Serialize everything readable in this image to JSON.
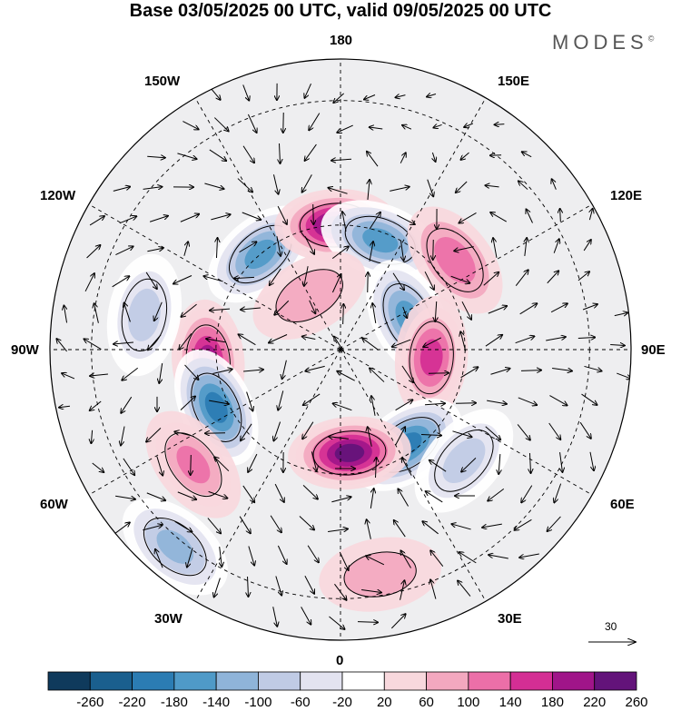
{
  "title": "Base 03/05/2025 00 UTC, valid 09/05/2025 00 UTC",
  "brand": "MODES",
  "brand_mark": "©",
  "longitude_labels": {
    "top": "180",
    "bottom": "0",
    "left": "90W",
    "right": "90E",
    "upper_left_outer": "150W",
    "upper_right_outer": "150E",
    "upper_left": "120W",
    "upper_right": "120E",
    "lower_left": "60W",
    "lower_right": "60E",
    "lower_left_outer": "30W",
    "lower_right_outer": "30E"
  },
  "vector_reference": {
    "label": "30"
  },
  "colorbar": {
    "labels": [
      "-260",
      "-220",
      "-180",
      "-140",
      "-100",
      "-60",
      "-20",
      "20",
      "60",
      "100",
      "140",
      "180",
      "220",
      "260"
    ],
    "colors": [
      "#0f3a5c",
      "#1a5f8e",
      "#2b7cb3",
      "#4f9ac8",
      "#8fb4d9",
      "#c0cbe5",
      "#e3e3f0",
      "#ffffff",
      "#f8d8dd",
      "#f3a8bf",
      "#ec6fa8",
      "#d42e94",
      "#a01589",
      "#63137a"
    ]
  },
  "anomaly_centers": [
    {
      "lon_lat": [
        -140,
        60
      ],
      "value": -180
    },
    {
      "lon_lat": [
        -178,
        60
      ],
      "value": 240
    },
    {
      "lon_lat": [
        160,
        62
      ],
      "value": -180
    },
    {
      "lon_lat": [
        128,
        55
      ],
      "value": 100
    },
    {
      "lon_lat": [
        115,
        72
      ],
      "value": -160
    },
    {
      "lon_lat": [
        85,
        68
      ],
      "value": 160
    },
    {
      "lon_lat": [
        35,
        62
      ],
      "value": -200
    },
    {
      "lon_lat": [
        48,
        50
      ],
      "value": -100
    },
    {
      "lon_lat": [
        5,
        65
      ],
      "value": 240
    },
    {
      "lon_lat": [
        -85,
        58
      ],
      "value": 200
    },
    {
      "lon_lat": [
        -65,
        57
      ],
      "value": -200
    },
    {
      "lon_lat": [
        -52,
        45
      ],
      "value": 120
    },
    {
      "lon_lat": [
        -40,
        28
      ],
      "value": -120
    },
    {
      "lon_lat": [
        -100,
        42
      ],
      "value": -80
    },
    {
      "lon_lat": [
        -150,
        75
      ],
      "value": 60
    },
    {
      "lon_lat": [
        10,
        35
      ],
      "value": 60
    }
  ]
}
